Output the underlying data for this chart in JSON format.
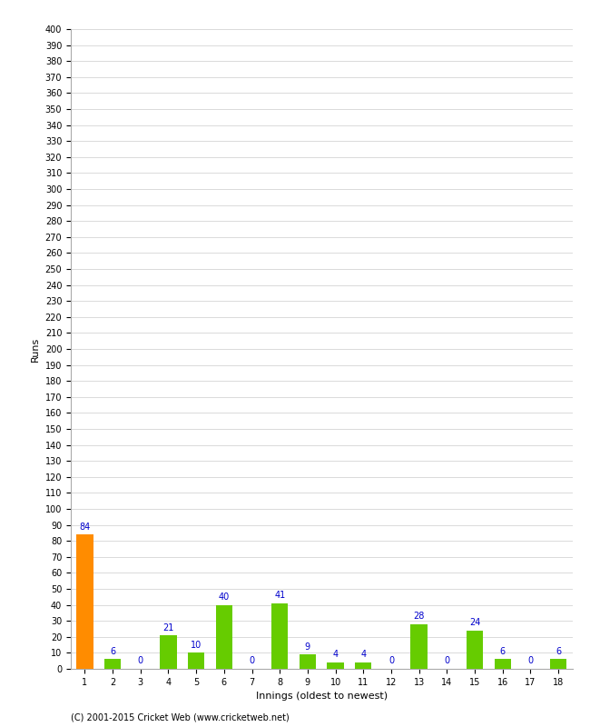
{
  "xlabel": "Innings (oldest to newest)",
  "ylabel": "Runs",
  "categories": [
    1,
    2,
    3,
    4,
    5,
    6,
    7,
    8,
    9,
    10,
    11,
    12,
    13,
    14,
    15,
    16,
    17,
    18
  ],
  "values": [
    84,
    6,
    0,
    21,
    10,
    40,
    0,
    41,
    9,
    4,
    4,
    0,
    28,
    0,
    24,
    6,
    0,
    6
  ],
  "bar_colors": [
    "#FF8C00",
    "#66CC00",
    "#66CC00",
    "#66CC00",
    "#66CC00",
    "#66CC00",
    "#66CC00",
    "#66CC00",
    "#66CC00",
    "#66CC00",
    "#66CC00",
    "#66CC00",
    "#66CC00",
    "#66CC00",
    "#66CC00",
    "#66CC00",
    "#66CC00",
    "#66CC00"
  ],
  "ylim": [
    0,
    400
  ],
  "label_color": "#0000CC",
  "grid_color": "#CCCCCC",
  "background_color": "#FFFFFF",
  "footer": "(C) 2001-2015 Cricket Web (www.cricketweb.net)",
  "label_fontsize": 7,
  "axis_tick_fontsize": 7,
  "axis_label_fontsize": 8
}
